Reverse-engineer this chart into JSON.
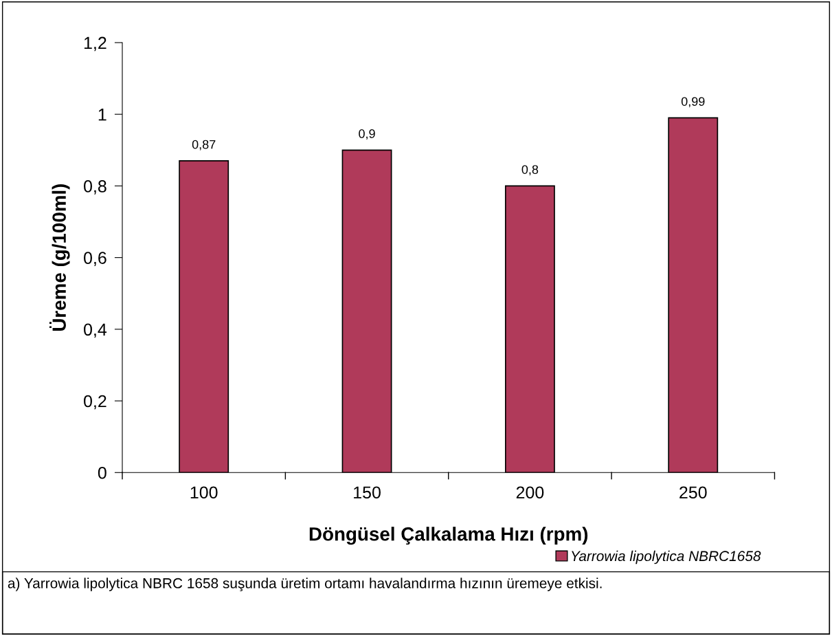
{
  "chart_data": {
    "type": "bar",
    "xlabel": "Döngüsel Çalkalama Hızı (rpm)",
    "ylabel": "Üreme (g/100ml)",
    "categories": [
      "100",
      "150",
      "200",
      "250"
    ],
    "series": [
      {
        "name": "Yarrowia lipolytica NBRC1658",
        "color": "#b03a5a",
        "values": [
          0.87,
          0.9,
          0.8,
          0.99
        ],
        "value_labels": [
          "0,87",
          "0,9",
          "0,8",
          "0,99"
        ]
      }
    ],
    "ylim": [
      0,
      1.2
    ],
    "yticks": [
      0,
      {
        "value": 0.2,
        "label": "0,2"
      },
      {
        "value": 0.4,
        "label": "0,4"
      },
      {
        "value": 0.6,
        "label": "0,6"
      },
      {
        "value": 0.8,
        "label": "0,8"
      },
      1,
      {
        "value": 1.2,
        "label": "1,2"
      }
    ],
    "legend": "bottom right",
    "grid": false,
    "annotations": [
      "a) Yarrowia lipolytica NBRC 1658 suşunda üretim ortamı havalandırma hızının üremeye etkisi."
    ]
  }
}
